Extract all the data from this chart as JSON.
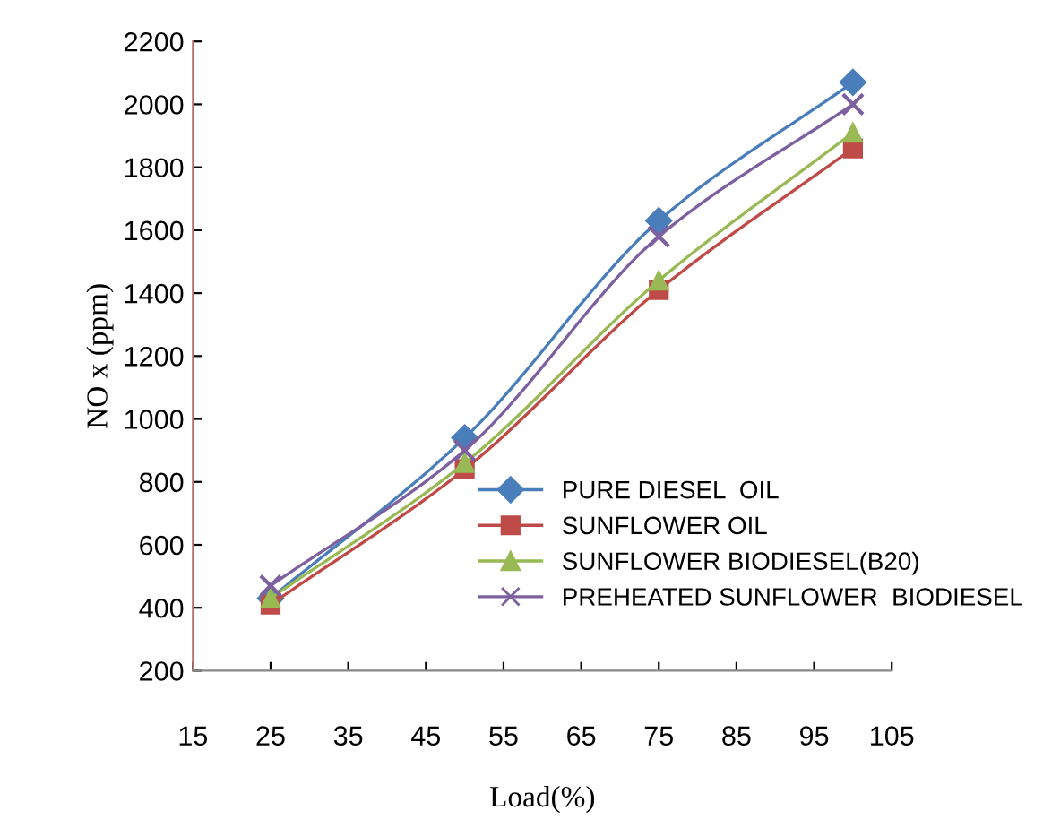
{
  "chart_data": {
    "type": "line",
    "xlabel": "Load(%)",
    "ylabel": "NO x (ppm)",
    "x": [
      25,
      50,
      75,
      100
    ],
    "series": [
      {
        "name": "PURE DIESEL  OIL",
        "color": "#4a7ebb",
        "marker": "diamond",
        "values": [
          430,
          940,
          1630,
          2070
        ]
      },
      {
        "name": "SUNFLOWER OIL",
        "color": "#be4b48",
        "marker": "square",
        "values": [
          410,
          840,
          1410,
          1860
        ]
      },
      {
        "name": "SUNFLOWER BIODIESEL(B20)",
        "color": "#98b954",
        "marker": "triangle",
        "values": [
          430,
          860,
          1440,
          1910
        ]
      },
      {
        "name": "PREHEATED SUNFLOWER  BIODIESEL",
        "color": "#7d60a0",
        "marker": "cross",
        "values": [
          470,
          900,
          1580,
          2000
        ]
      }
    ],
    "xlim": [
      15,
      105
    ],
    "xticks": [
      15,
      25,
      35,
      45,
      55,
      65,
      75,
      85,
      95,
      105
    ],
    "ylim": [
      200,
      2200
    ],
    "yticks": [
      200,
      400,
      600,
      800,
      1000,
      1200,
      1400,
      1600,
      1800,
      2000,
      2200
    ],
    "grid": false,
    "legend": "bottom right"
  }
}
